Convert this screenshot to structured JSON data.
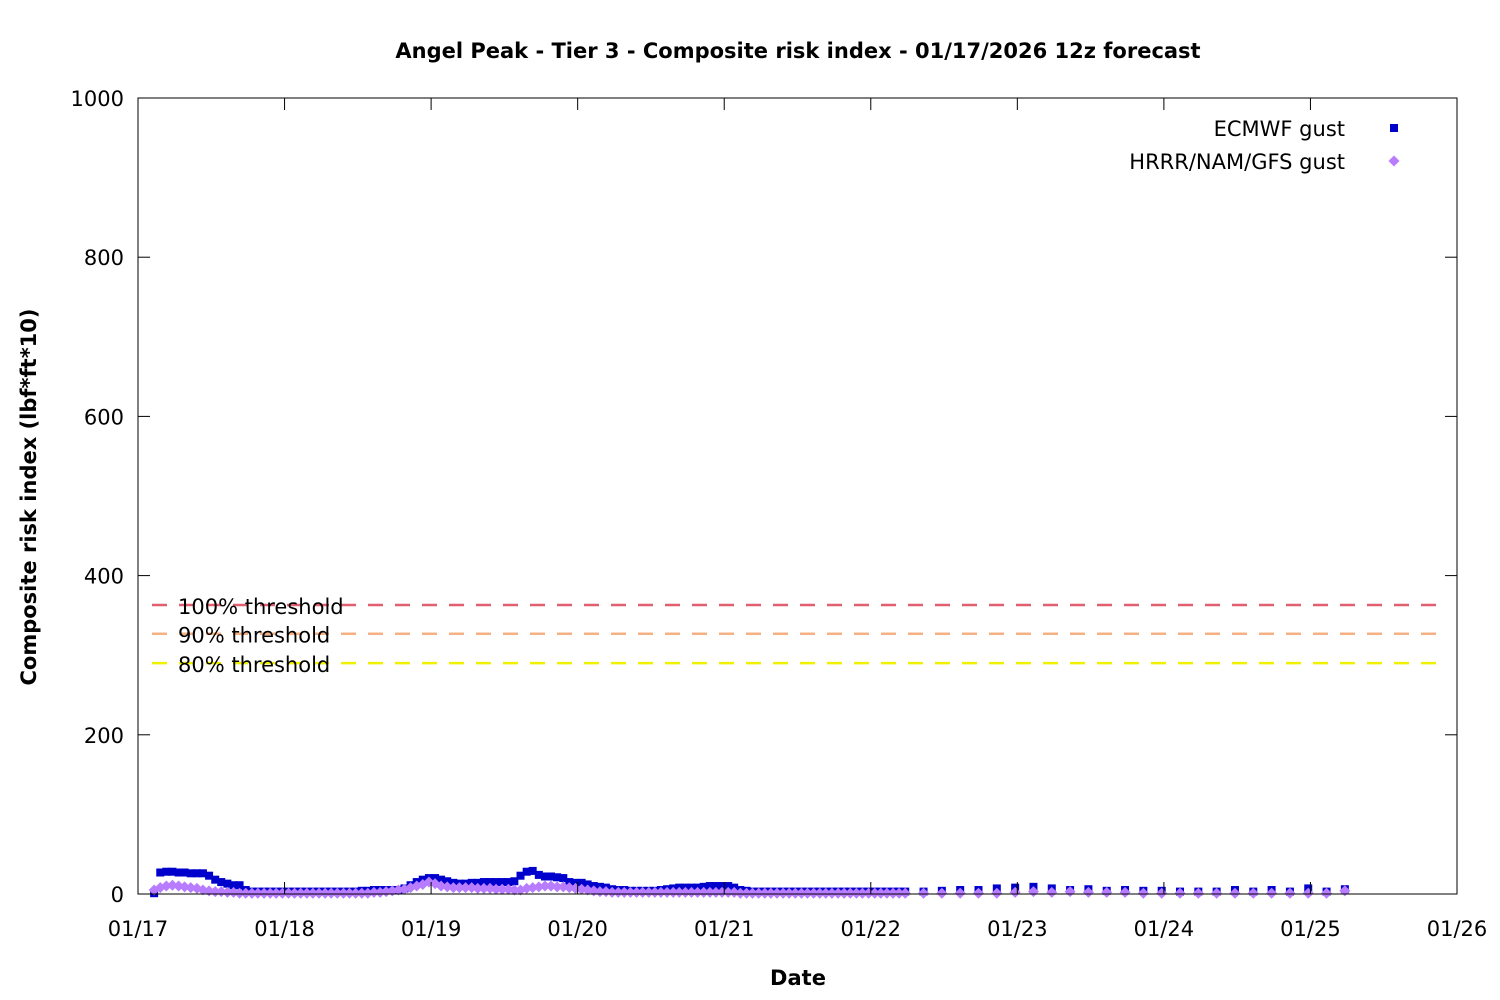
{
  "chart_data": {
    "type": "scatter",
    "title": "Angel Peak - Tier 3 - Composite risk index - 01/17/2026 12z forecast",
    "xlabel": "Date",
    "ylabel": "Composite risk index (lbf*ft*10)",
    "xlim": [
      0,
      9
    ],
    "ylim": [
      0,
      1000
    ],
    "x_ticks": [
      {
        "value": 0,
        "label": "01/17"
      },
      {
        "value": 1,
        "label": "01/18"
      },
      {
        "value": 2,
        "label": "01/19"
      },
      {
        "value": 3,
        "label": "01/20"
      },
      {
        "value": 4,
        "label": "01/21"
      },
      {
        "value": 5,
        "label": "01/22"
      },
      {
        "value": 6,
        "label": "01/23"
      },
      {
        "value": 7,
        "label": "01/24"
      },
      {
        "value": 8,
        "label": "01/25"
      },
      {
        "value": 9,
        "label": "01/26"
      }
    ],
    "y_ticks": [
      0,
      200,
      400,
      600,
      800,
      1000
    ],
    "legend_position": "top-right",
    "grid": false,
    "thresholds": [
      {
        "label": "100% threshold",
        "value": 363,
        "color": "#e06070"
      },
      {
        "label": "90% threshold",
        "value": 327,
        "color": "#f4b183"
      },
      {
        "label": "80% threshold",
        "value": 290,
        "color": "#f0f000"
      }
    ],
    "series": [
      {
        "name": "ECMWF gust",
        "marker": "square",
        "color": "#0000cc",
        "points": [
          [
            0.0,
            1
          ],
          [
            0.042,
            27
          ],
          [
            0.083,
            28
          ],
          [
            0.125,
            28
          ],
          [
            0.167,
            27
          ],
          [
            0.208,
            27
          ],
          [
            0.25,
            26
          ],
          [
            0.292,
            26
          ],
          [
            0.333,
            26
          ],
          [
            0.375,
            23
          ],
          [
            0.417,
            18
          ],
          [
            0.458,
            15
          ],
          [
            0.5,
            13
          ],
          [
            0.542,
            11
          ],
          [
            0.583,
            11
          ],
          [
            0.625,
            5
          ],
          [
            0.667,
            3
          ],
          [
            0.708,
            3
          ],
          [
            0.75,
            3
          ],
          [
            0.792,
            3
          ],
          [
            0.833,
            3
          ],
          [
            0.875,
            3
          ],
          [
            0.917,
            3
          ],
          [
            0.958,
            3
          ],
          [
            1.0,
            3
          ],
          [
            1.042,
            3
          ],
          [
            1.083,
            3
          ],
          [
            1.125,
            3
          ],
          [
            1.167,
            3
          ],
          [
            1.208,
            3
          ],
          [
            1.25,
            3
          ],
          [
            1.292,
            3
          ],
          [
            1.333,
            3
          ],
          [
            1.375,
            3
          ],
          [
            1.417,
            4
          ],
          [
            1.458,
            4
          ],
          [
            1.5,
            5
          ],
          [
            1.542,
            5
          ],
          [
            1.583,
            5
          ],
          [
            1.625,
            5
          ],
          [
            1.667,
            5
          ],
          [
            1.708,
            7
          ],
          [
            1.75,
            11
          ],
          [
            1.792,
            15
          ],
          [
            1.833,
            18
          ],
          [
            1.875,
            20
          ],
          [
            1.917,
            20
          ],
          [
            1.958,
            18
          ],
          [
            2.0,
            16
          ],
          [
            2.042,
            14
          ],
          [
            2.083,
            13
          ],
          [
            2.125,
            13
          ],
          [
            2.167,
            14
          ],
          [
            2.208,
            14
          ],
          [
            2.25,
            15
          ],
          [
            2.292,
            15
          ],
          [
            2.333,
            15
          ],
          [
            2.375,
            15
          ],
          [
            2.417,
            15
          ],
          [
            2.458,
            16
          ],
          [
            2.5,
            23
          ],
          [
            2.542,
            28
          ],
          [
            2.583,
            29
          ],
          [
            2.625,
            24
          ],
          [
            2.667,
            22
          ],
          [
            2.708,
            22
          ],
          [
            2.75,
            21
          ],
          [
            2.792,
            20
          ],
          [
            2.833,
            15
          ],
          [
            2.875,
            14
          ],
          [
            2.917,
            14
          ],
          [
            2.958,
            12
          ],
          [
            3.0,
            10
          ],
          [
            3.042,
            9
          ],
          [
            3.083,
            8
          ],
          [
            3.125,
            6
          ],
          [
            3.167,
            5
          ],
          [
            3.208,
            5
          ],
          [
            3.25,
            4
          ],
          [
            3.292,
            4
          ],
          [
            3.333,
            4
          ],
          [
            3.375,
            4
          ],
          [
            3.417,
            4
          ],
          [
            3.458,
            5
          ],
          [
            3.5,
            6
          ],
          [
            3.542,
            7
          ],
          [
            3.583,
            8
          ],
          [
            3.625,
            8
          ],
          [
            3.667,
            8
          ],
          [
            3.708,
            8
          ],
          [
            3.75,
            9
          ],
          [
            3.792,
            10
          ],
          [
            3.833,
            10
          ],
          [
            3.875,
            10
          ],
          [
            3.917,
            10
          ],
          [
            3.958,
            8
          ],
          [
            4.0,
            5
          ],
          [
            4.042,
            4
          ],
          [
            4.083,
            3
          ],
          [
            4.125,
            3
          ],
          [
            4.167,
            3
          ],
          [
            4.208,
            3
          ],
          [
            4.25,
            3
          ],
          [
            4.292,
            3
          ],
          [
            4.333,
            3
          ],
          [
            4.375,
            3
          ],
          [
            4.417,
            3
          ],
          [
            4.458,
            3
          ],
          [
            4.5,
            3
          ],
          [
            4.542,
            3
          ],
          [
            4.583,
            3
          ],
          [
            4.625,
            3
          ],
          [
            4.667,
            3
          ],
          [
            4.708,
            3
          ],
          [
            4.75,
            3
          ],
          [
            4.792,
            3
          ],
          [
            4.833,
            3
          ],
          [
            4.875,
            3
          ],
          [
            4.917,
            3
          ],
          [
            4.958,
            3
          ],
          [
            5.0,
            3
          ],
          [
            5.042,
            3
          ],
          [
            5.083,
            3
          ],
          [
            5.125,
            3
          ],
          [
            5.25,
            3
          ],
          [
            5.375,
            4
          ],
          [
            5.5,
            5
          ],
          [
            5.625,
            5
          ],
          [
            5.75,
            7
          ],
          [
            5.875,
            8
          ],
          [
            6.0,
            9
          ],
          [
            6.125,
            7
          ],
          [
            6.25,
            5
          ],
          [
            6.375,
            6
          ],
          [
            6.5,
            4
          ],
          [
            6.625,
            5
          ],
          [
            6.75,
            4
          ],
          [
            6.875,
            4
          ],
          [
            7.0,
            3
          ],
          [
            7.125,
            3
          ],
          [
            7.25,
            3
          ],
          [
            7.375,
            5
          ],
          [
            7.5,
            3
          ],
          [
            7.625,
            5
          ],
          [
            7.75,
            3
          ],
          [
            7.875,
            7
          ],
          [
            8.0,
            3
          ],
          [
            8.125,
            6
          ]
        ]
      },
      {
        "name": "HRRR/NAM/GFS gust",
        "marker": "diamond",
        "color": "#b77cff",
        "points": [
          [
            0.0,
            5
          ],
          [
            0.042,
            8
          ],
          [
            0.083,
            10
          ],
          [
            0.125,
            11
          ],
          [
            0.167,
            10
          ],
          [
            0.208,
            9
          ],
          [
            0.25,
            8
          ],
          [
            0.292,
            7
          ],
          [
            0.333,
            5
          ],
          [
            0.375,
            4
          ],
          [
            0.417,
            3
          ],
          [
            0.458,
            3
          ],
          [
            0.5,
            2
          ],
          [
            0.542,
            2
          ],
          [
            0.583,
            1
          ],
          [
            0.625,
            1
          ],
          [
            0.667,
            1
          ],
          [
            0.708,
            1
          ],
          [
            0.75,
            1
          ],
          [
            0.792,
            1
          ],
          [
            0.833,
            1
          ],
          [
            0.875,
            1
          ],
          [
            0.917,
            1
          ],
          [
            0.958,
            1
          ],
          [
            1.0,
            1
          ],
          [
            1.042,
            1
          ],
          [
            1.083,
            1
          ],
          [
            1.125,
            1
          ],
          [
            1.167,
            1
          ],
          [
            1.208,
            1
          ],
          [
            1.25,
            1
          ],
          [
            1.292,
            1
          ],
          [
            1.333,
            1
          ],
          [
            1.375,
            1
          ],
          [
            1.417,
            1
          ],
          [
            1.458,
            1
          ],
          [
            1.5,
            2
          ],
          [
            1.542,
            2
          ],
          [
            1.583,
            3
          ],
          [
            1.625,
            4
          ],
          [
            1.667,
            5
          ],
          [
            1.708,
            6
          ],
          [
            1.75,
            8
          ],
          [
            1.792,
            10
          ],
          [
            1.833,
            12
          ],
          [
            1.875,
            15
          ],
          [
            1.917,
            13
          ],
          [
            1.958,
            10
          ],
          [
            2.0,
            9
          ],
          [
            2.042,
            8
          ],
          [
            2.083,
            8
          ],
          [
            2.125,
            8
          ],
          [
            2.167,
            8
          ],
          [
            2.208,
            7
          ],
          [
            2.25,
            7
          ],
          [
            2.292,
            7
          ],
          [
            2.333,
            6
          ],
          [
            2.375,
            6
          ],
          [
            2.417,
            6
          ],
          [
            2.458,
            5
          ],
          [
            2.5,
            5
          ],
          [
            2.542,
            7
          ],
          [
            2.583,
            8
          ],
          [
            2.625,
            9
          ],
          [
            2.667,
            10
          ],
          [
            2.708,
            10
          ],
          [
            2.75,
            9
          ],
          [
            2.792,
            9
          ],
          [
            2.833,
            8
          ],
          [
            2.875,
            7
          ],
          [
            2.917,
            6
          ],
          [
            2.958,
            5
          ],
          [
            3.0,
            4
          ],
          [
            3.042,
            3
          ],
          [
            3.083,
            3
          ],
          [
            3.125,
            2
          ],
          [
            3.167,
            2
          ],
          [
            3.208,
            2
          ],
          [
            3.25,
            2
          ],
          [
            3.292,
            2
          ],
          [
            3.333,
            2
          ],
          [
            3.375,
            2
          ],
          [
            3.417,
            2
          ],
          [
            3.458,
            2
          ],
          [
            3.5,
            2
          ],
          [
            3.542,
            2
          ],
          [
            3.583,
            2
          ],
          [
            3.625,
            2
          ],
          [
            3.667,
            2
          ],
          [
            3.708,
            2
          ],
          [
            3.75,
            2
          ],
          [
            3.792,
            2
          ],
          [
            3.833,
            2
          ],
          [
            3.875,
            2
          ],
          [
            3.917,
            2
          ],
          [
            3.958,
            2
          ],
          [
            4.0,
            1
          ],
          [
            4.042,
            1
          ],
          [
            4.083,
            1
          ],
          [
            4.125,
            1
          ],
          [
            4.167,
            1
          ],
          [
            4.208,
            1
          ],
          [
            4.25,
            1
          ],
          [
            4.292,
            1
          ],
          [
            4.333,
            1
          ],
          [
            4.375,
            1
          ],
          [
            4.417,
            1
          ],
          [
            4.458,
            1
          ],
          [
            4.5,
            1
          ],
          [
            4.542,
            1
          ],
          [
            4.583,
            1
          ],
          [
            4.625,
            1
          ],
          [
            4.667,
            1
          ],
          [
            4.708,
            1
          ],
          [
            4.75,
            1
          ],
          [
            4.792,
            1
          ],
          [
            4.833,
            1
          ],
          [
            4.875,
            1
          ],
          [
            4.917,
            1
          ],
          [
            4.958,
            1
          ],
          [
            5.0,
            1
          ],
          [
            5.042,
            1
          ],
          [
            5.083,
            1
          ],
          [
            5.125,
            1
          ],
          [
            5.25,
            1
          ],
          [
            5.375,
            1
          ],
          [
            5.5,
            1
          ],
          [
            5.625,
            1
          ],
          [
            5.75,
            1
          ],
          [
            5.875,
            2
          ],
          [
            6.0,
            3
          ],
          [
            6.125,
            2
          ],
          [
            6.25,
            3
          ],
          [
            6.375,
            2
          ],
          [
            6.5,
            2
          ],
          [
            6.625,
            2
          ],
          [
            6.75,
            1
          ],
          [
            6.875,
            1
          ],
          [
            7.0,
            1
          ],
          [
            7.125,
            1
          ],
          [
            7.25,
            1
          ],
          [
            7.375,
            1
          ],
          [
            7.5,
            1
          ],
          [
            7.625,
            1
          ],
          [
            7.75,
            1
          ],
          [
            7.875,
            1
          ],
          [
            8.0,
            1
          ],
          [
            8.125,
            4
          ]
        ]
      }
    ]
  }
}
